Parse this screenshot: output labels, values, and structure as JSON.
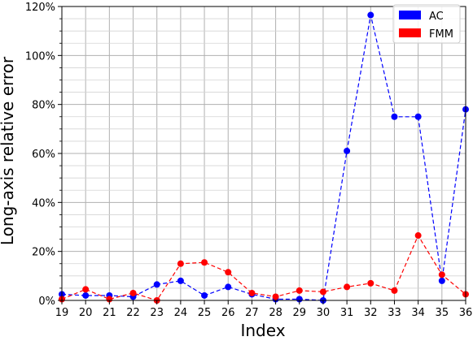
{
  "chart_data": {
    "type": "line",
    "xlabel": "Index",
    "ylabel": "Long-axis relative error",
    "x": [
      19,
      20,
      21,
      22,
      23,
      24,
      25,
      26,
      27,
      28,
      29,
      30,
      31,
      32,
      33,
      34,
      35,
      36
    ],
    "xlim": [
      19,
      36
    ],
    "ylim": [
      0,
      120
    ],
    "y_major_ticks": [
      0,
      20,
      40,
      60,
      80,
      100,
      120
    ],
    "y_tick_labels": [
      "0%",
      "20%",
      "40%",
      "60%",
      "80%",
      "100%",
      "120%"
    ],
    "y_minor_step": 5,
    "grid": true,
    "legend_position": "top-right",
    "series": [
      {
        "name": "AC",
        "color": "#0000ff",
        "line_style": "dashed",
        "values": [
          2.5,
          2.0,
          2.0,
          1.5,
          6.5,
          8.0,
          2.0,
          5.5,
          2.5,
          0.5,
          0.5,
          0.0,
          61.0,
          116.5,
          75.0,
          75.0,
          8.0,
          78.0
        ]
      },
      {
        "name": "FMM",
        "color": "#ff0000",
        "line_style": "dashed",
        "values": [
          0.5,
          4.5,
          0.5,
          3.0,
          0.0,
          15.0,
          15.5,
          11.5,
          3.0,
          1.5,
          4.0,
          3.5,
          5.5,
          7.0,
          4.0,
          26.5,
          10.5,
          2.5
        ]
      }
    ]
  }
}
